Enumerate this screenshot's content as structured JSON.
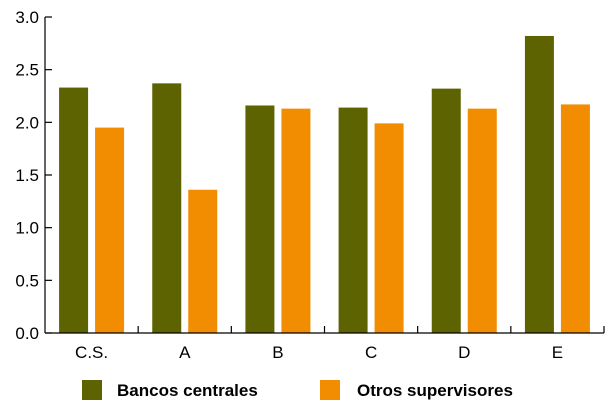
{
  "chart_data": {
    "type": "bar",
    "categories": [
      "C.S.",
      "A",
      "B",
      "C",
      "D",
      "E"
    ],
    "series": [
      {
        "name": "Bancos centrales",
        "color": "#5c6300",
        "values": [
          2.33,
          2.37,
          2.16,
          2.14,
          2.32,
          2.82
        ]
      },
      {
        "name": "Otros supervisores",
        "color": "#f28c00",
        "values": [
          1.95,
          1.36,
          2.13,
          1.99,
          2.13,
          2.17
        ]
      }
    ],
    "ylim": [
      0,
      3.0
    ],
    "yticks": [
      "0.0",
      "0.5",
      "1.0",
      "1.5",
      "2.0",
      "2.5",
      "3.0"
    ],
    "title": "",
    "xlabel": "",
    "ylabel": "",
    "grid": false,
    "legend_position": "bottom"
  }
}
